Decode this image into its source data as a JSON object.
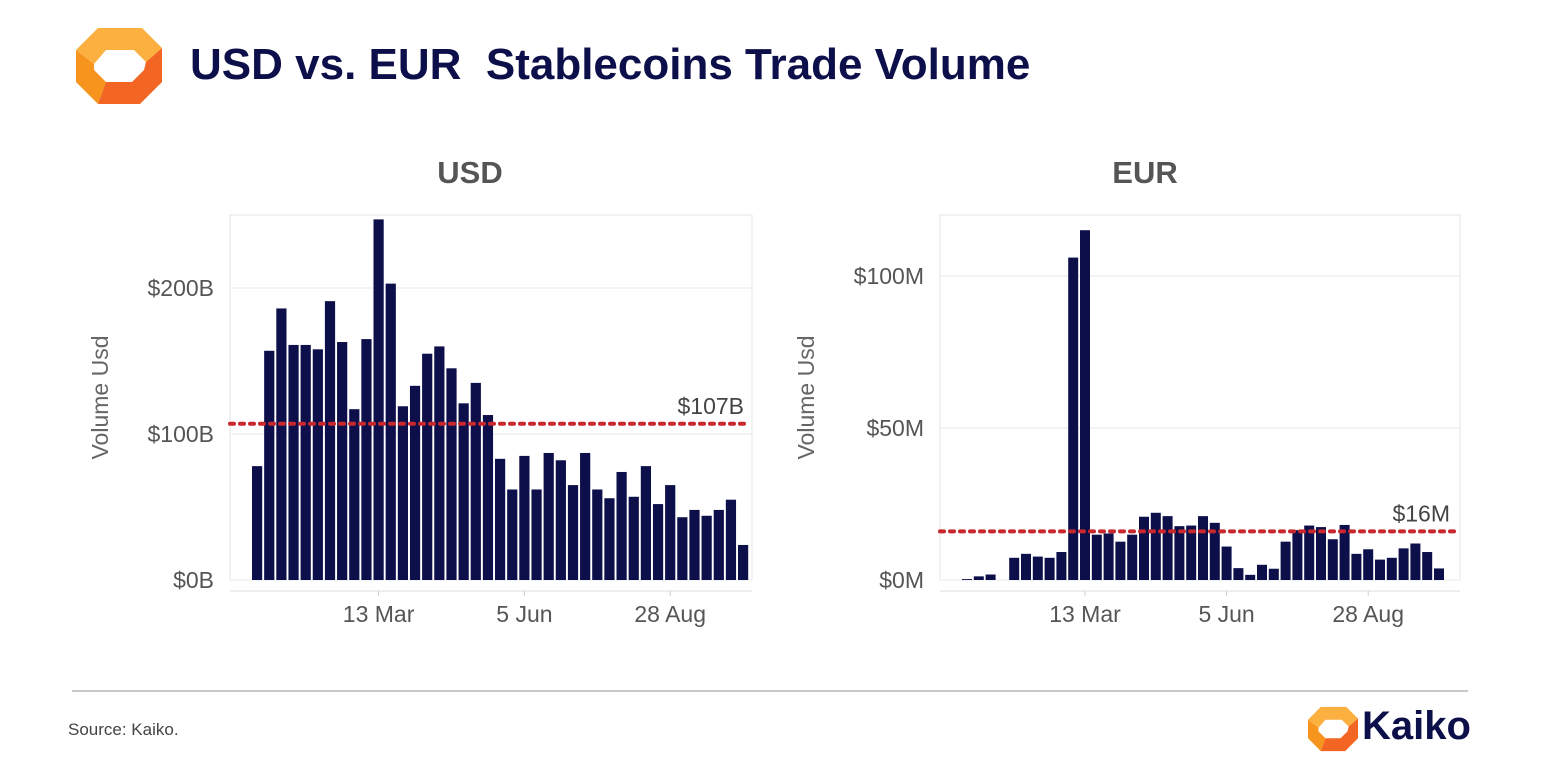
{
  "title": "USD vs. EUR  Stablecoins Trade Volume",
  "footer": {
    "source": "Source: Kaiko.",
    "brand": "Kaiko"
  },
  "colors": {
    "bar": "#0d0f4a",
    "reference": "#c8282d",
    "title": "#0d0f4a",
    "logo_orange": "#f7941d",
    "logo_light": "#fbb040"
  },
  "chart_data": [
    {
      "type": "bar",
      "title": "USD",
      "ylabel": "Volume Usd",
      "ylim": [
        0,
        250
      ],
      "yticks": [
        0,
        100,
        200
      ],
      "ytick_labels": [
        "$0B",
        "$100B",
        "$200B"
      ],
      "x_ticks": [
        {
          "label": "13 Mar",
          "index": 10
        },
        {
          "label": "5 Jun",
          "index": 22
        },
        {
          "label": "28 Aug",
          "index": 34
        }
      ],
      "values": [
        78,
        157,
        186,
        161,
        161,
        158,
        191,
        163,
        117,
        165,
        247,
        203,
        119,
        133,
        155,
        160,
        145,
        121,
        135,
        113,
        83,
        62,
        85,
        62,
        87,
        82,
        65,
        87,
        62,
        56,
        74,
        57,
        78,
        52,
        65,
        43,
        48,
        44,
        48,
        55,
        24
      ],
      "reference_value": 107,
      "reference_label": "$107B"
    },
    {
      "type": "bar",
      "title": "EUR",
      "ylabel": "Volume Usd",
      "ylim": [
        0,
        120
      ],
      "yticks": [
        0,
        50,
        100
      ],
      "ytick_labels": [
        "$0M",
        "$50M",
        "$100M"
      ],
      "x_ticks": [
        {
          "label": "13 Mar",
          "index": 10
        },
        {
          "label": "5 Jun",
          "index": 22
        },
        {
          "label": "28 Aug",
          "index": 34
        }
      ],
      "values": [
        0.3,
        1.2,
        1.8,
        0,
        7.3,
        8.6,
        7.7,
        7.3,
        9.2,
        106,
        115,
        14.9,
        15.3,
        12.6,
        14.9,
        20.8,
        22.1,
        21,
        17.7,
        17.9,
        21,
        18.8,
        11,
        3.9,
        1.7,
        5,
        3.7,
        12.6,
        16.4,
        17.9,
        17.4,
        13.4,
        18.1,
        8.6,
        10.1,
        6.7,
        7.3,
        10.4,
        12,
        9.2,
        3.8
      ],
      "reference_value": 16,
      "reference_label": "$16M"
    }
  ]
}
